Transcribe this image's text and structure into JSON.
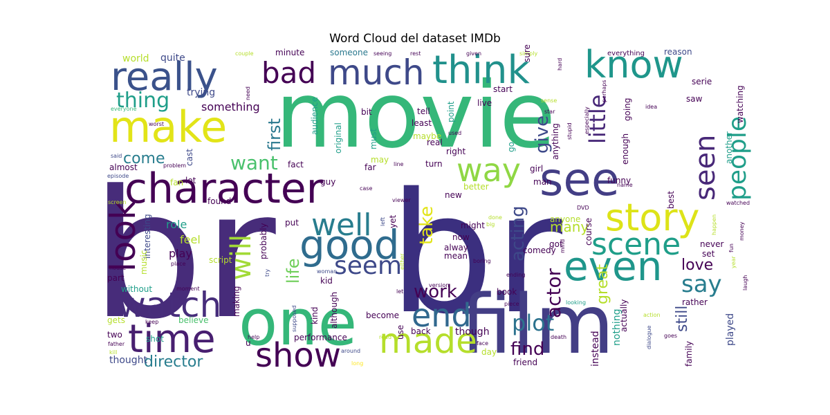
{
  "chart_data": {
    "type": "wordcloud",
    "title": "Word Cloud del dataset IMDb",
    "palette": [
      "#440154",
      "#482878",
      "#3e4989",
      "#31688e",
      "#26828e",
      "#1f9e89",
      "#35b779",
      "#6ece58",
      "#b5de2b",
      "#fde725"
    ],
    "words": [
      {
        "text": "br",
        "weight": 1.0,
        "color": "#472c7a"
      },
      {
        "text": "br",
        "weight": 0.95,
        "color": "#3b2f7f"
      },
      {
        "text": "movie",
        "weight": 0.72,
        "color": "#35b779"
      },
      {
        "text": "film",
        "weight": 0.6,
        "color": "#433e85"
      },
      {
        "text": "one",
        "weight": 0.45,
        "color": "#35b779"
      },
      {
        "text": "make",
        "weight": 0.28,
        "color": "#e2e418"
      },
      {
        "text": "see",
        "weight": 0.3,
        "color": "#433e85"
      },
      {
        "text": "character",
        "weight": 0.25,
        "color": "#440154"
      },
      {
        "text": "time",
        "weight": 0.24,
        "color": "#481f70"
      },
      {
        "text": "watch",
        "weight": 0.23,
        "color": "#472d7b"
      },
      {
        "text": "good",
        "weight": 0.25,
        "color": "#2f6c8e"
      },
      {
        "text": "even",
        "weight": 0.24,
        "color": "#1f968b"
      },
      {
        "text": "really",
        "weight": 0.2,
        "color": "#3b528b"
      },
      {
        "text": "think",
        "weight": 0.2,
        "color": "#21918c"
      },
      {
        "text": "know",
        "weight": 0.2,
        "color": "#1f968b"
      },
      {
        "text": "story",
        "weight": 0.2,
        "color": "#dde318"
      },
      {
        "text": "made",
        "weight": 0.2,
        "color": "#b5de2b"
      },
      {
        "text": "show",
        "weight": 0.17,
        "color": "#440154"
      },
      {
        "text": "end",
        "weight": 0.17,
        "color": "#31688e"
      },
      {
        "text": "scene",
        "weight": 0.17,
        "color": "#1f9e89"
      },
      {
        "text": "people",
        "weight": 0.15,
        "color": "#1f9e89"
      },
      {
        "text": "seen",
        "weight": 0.15,
        "color": "#482878"
      },
      {
        "text": "way",
        "weight": 0.16,
        "color": "#8fd744"
      },
      {
        "text": "much",
        "weight": 0.16,
        "color": "#3e4989"
      },
      {
        "text": "look",
        "weight": 0.15,
        "color": "#440154"
      },
      {
        "text": "well",
        "weight": 0.15,
        "color": "#287d8e"
      },
      {
        "text": "will",
        "weight": 0.14,
        "color": "#a2da37"
      },
      {
        "text": "bad",
        "weight": 0.13,
        "color": "#440154"
      },
      {
        "text": "seem",
        "weight": 0.12,
        "color": "#3e4989"
      },
      {
        "text": "say",
        "weight": 0.11,
        "color": "#287d8e"
      },
      {
        "text": "plot",
        "weight": 0.11,
        "color": "#2c728e"
      },
      {
        "text": "little",
        "weight": 0.1,
        "color": "#482878"
      },
      {
        "text": "thing",
        "weight": 0.1,
        "color": "#1f9e89"
      },
      {
        "text": "want",
        "weight": 0.09,
        "color": "#4ac16d"
      },
      {
        "text": "first",
        "weight": 0.09,
        "color": "#2a788e"
      },
      {
        "text": "give",
        "weight": 0.08,
        "color": "#3e4989"
      },
      {
        "text": "take",
        "weight": 0.09,
        "color": "#e2e418"
      },
      {
        "text": "work",
        "weight": 0.08,
        "color": "#440154"
      },
      {
        "text": "director",
        "weight": 0.07,
        "color": "#287d8e"
      },
      {
        "text": "acting",
        "weight": 0.08,
        "color": "#3e4989"
      },
      {
        "text": "actor",
        "weight": 0.08,
        "color": "#440154"
      },
      {
        "text": "great",
        "weight": 0.07,
        "color": "#b5de2b"
      },
      {
        "text": "find",
        "weight": 0.07,
        "color": "#440154"
      },
      {
        "text": "life",
        "weight": 0.07,
        "color": "#6ece58"
      },
      {
        "text": "come",
        "weight": 0.07,
        "color": "#287d8e"
      },
      {
        "text": "love",
        "weight": 0.07,
        "color": "#440154"
      },
      {
        "text": "still",
        "weight": 0.07,
        "color": "#3e4989"
      },
      {
        "text": "many",
        "weight": 0.06,
        "color": "#b5de2b"
      },
      {
        "text": "something",
        "weight": 0.04,
        "color": "#440154"
      },
      {
        "text": "trying",
        "weight": 0.04,
        "color": "#3e4989"
      },
      {
        "text": "world",
        "weight": 0.04,
        "color": "#b5de2b"
      },
      {
        "text": "quite",
        "weight": 0.04,
        "color": "#3e4989"
      },
      {
        "text": "minute",
        "weight": 0.04,
        "color": "#440154"
      },
      {
        "text": "someone",
        "weight": 0.04,
        "color": "#2a788e"
      },
      {
        "text": "reason",
        "weight": 0.04,
        "color": "#3e4989"
      },
      {
        "text": "everything",
        "weight": 0.03,
        "color": "#440154"
      },
      {
        "text": "everyone",
        "weight": 0.03,
        "color": "#35b779"
      },
      {
        "text": "worst",
        "weight": 0.03,
        "color": "#440154"
      },
      {
        "text": "said",
        "weight": 0.03,
        "color": "#3e4989"
      },
      {
        "text": "episode",
        "weight": 0.03,
        "color": "#3e4989"
      },
      {
        "text": "almost",
        "weight": 0.04,
        "color": "#440154"
      },
      {
        "text": "lot",
        "weight": 0.04,
        "color": "#440154"
      },
      {
        "text": "fact",
        "weight": 0.04,
        "color": "#440154"
      },
      {
        "text": "guy",
        "weight": 0.04,
        "color": "#440154"
      },
      {
        "text": "cast",
        "weight": 0.04,
        "color": "#3e4989"
      },
      {
        "text": "problem",
        "weight": 0.03,
        "color": "#440154"
      },
      {
        "text": "fan",
        "weight": 0.04,
        "color": "#b5de2b"
      },
      {
        "text": "screen",
        "weight": 0.03,
        "color": "#b5de2b"
      },
      {
        "text": "interesting",
        "weight": 0.04,
        "color": "#3e4989"
      },
      {
        "text": "found",
        "weight": 0.04,
        "color": "#440154"
      },
      {
        "text": "role",
        "weight": 0.05,
        "color": "#1f9e89"
      },
      {
        "text": "feel",
        "weight": 0.05,
        "color": "#b5de2b"
      },
      {
        "text": "play",
        "weight": 0.05,
        "color": "#440154"
      },
      {
        "text": "part",
        "weight": 0.04,
        "color": "#440154"
      },
      {
        "text": "without",
        "weight": 0.04,
        "color": "#1f9e89"
      },
      {
        "text": "music",
        "weight": 0.04,
        "color": "#b5de2b"
      },
      {
        "text": "house",
        "weight": 0.03,
        "color": "#440154"
      },
      {
        "text": "place",
        "weight": 0.03,
        "color": "#440154"
      },
      {
        "text": "moment",
        "weight": 0.03,
        "color": "#440154"
      },
      {
        "text": "keep",
        "weight": 0.03,
        "color": "#440154"
      },
      {
        "text": "gets",
        "weight": 0.04,
        "color": "#b5de2b"
      },
      {
        "text": "believe",
        "weight": 0.04,
        "color": "#4ac16d"
      },
      {
        "text": "two",
        "weight": 0.04,
        "color": "#440154"
      },
      {
        "text": "shot",
        "weight": 0.04,
        "color": "#1f9e89"
      },
      {
        "text": "father",
        "weight": 0.03,
        "color": "#440154"
      },
      {
        "text": "kill",
        "weight": 0.03,
        "color": "#b5de2b"
      },
      {
        "text": "thought",
        "weight": 0.04,
        "color": "#3e4989"
      },
      {
        "text": "making",
        "weight": 0.04,
        "color": "#440154"
      },
      {
        "text": "help",
        "weight": 0.03,
        "color": "#440154"
      },
      {
        "text": "u",
        "weight": 0.04,
        "color": "#440154"
      },
      {
        "text": "around",
        "weight": 0.03,
        "color": "#3e4989"
      },
      {
        "text": "long",
        "weight": 0.03,
        "color": "#fde725"
      },
      {
        "text": "script",
        "weight": 0.04,
        "color": "#b5de2b"
      },
      {
        "text": "probably",
        "weight": 0.04,
        "color": "#440154"
      },
      {
        "text": "put",
        "weight": 0.04,
        "color": "#440154"
      },
      {
        "text": "try",
        "weight": 0.03,
        "color": "#3e4989"
      },
      {
        "text": "supposed",
        "weight": 0.03,
        "color": "#3e4989"
      },
      {
        "text": "kind",
        "weight": 0.04,
        "color": "#440154"
      },
      {
        "text": "although",
        "weight": 0.04,
        "color": "#440154"
      },
      {
        "text": "kid",
        "weight": 0.04,
        "color": "#440154"
      },
      {
        "text": "woman",
        "weight": 0.03,
        "color": "#3e4989"
      },
      {
        "text": "become",
        "weight": 0.04,
        "color": "#440154"
      },
      {
        "text": "performance",
        "weight": 0.04,
        "color": "#440154"
      },
      {
        "text": "read",
        "weight": 0.03,
        "color": "#b5de2b"
      },
      {
        "text": "audience",
        "weight": 0.04,
        "color": "#1f9e89"
      },
      {
        "text": "original",
        "weight": 0.04,
        "color": "#1f9e89"
      },
      {
        "text": "bit",
        "weight": 0.04,
        "color": "#440154"
      },
      {
        "text": "must",
        "weight": 0.04,
        "color": "#1f9e89"
      },
      {
        "text": "need",
        "weight": 0.03,
        "color": "#440154"
      },
      {
        "text": "couple",
        "weight": 0.03,
        "color": "#b5de2b"
      },
      {
        "text": "seeing",
        "weight": 0.03,
        "color": "#440154"
      },
      {
        "text": "rest",
        "weight": 0.03,
        "color": "#440154"
      },
      {
        "text": "given",
        "weight": 0.03,
        "color": "#440154"
      },
      {
        "text": "simply",
        "weight": 0.03,
        "color": "#b5de2b"
      },
      {
        "text": "hard",
        "weight": 0.03,
        "color": "#440154"
      },
      {
        "text": "star",
        "weight": 0.03,
        "color": "#440154"
      },
      {
        "text": "sense",
        "weight": 0.03,
        "color": "#b5de2b"
      },
      {
        "text": "sure",
        "weight": 0.03,
        "color": "#440154"
      },
      {
        "text": "start",
        "weight": 0.04,
        "color": "#440154"
      },
      {
        "text": "live",
        "weight": 0.04,
        "color": "#440154"
      },
      {
        "text": "tell",
        "weight": 0.04,
        "color": "#440154"
      },
      {
        "text": "least",
        "weight": 0.04,
        "color": "#440154"
      },
      {
        "text": "maybe",
        "weight": 0.04,
        "color": "#b5de2b"
      },
      {
        "text": "point",
        "weight": 0.04,
        "color": "#1f9e89"
      },
      {
        "text": "real",
        "weight": 0.04,
        "color": "#440154"
      },
      {
        "text": "right",
        "weight": 0.04,
        "color": "#440154"
      },
      {
        "text": "may",
        "weight": 0.04,
        "color": "#b5de2b"
      },
      {
        "text": "line",
        "weight": 0.03,
        "color": "#440154"
      },
      {
        "text": "turn",
        "weight": 0.04,
        "color": "#440154"
      },
      {
        "text": "far",
        "weight": 0.04,
        "color": "#440154"
      },
      {
        "text": "case",
        "weight": 0.03,
        "color": "#440154"
      },
      {
        "text": "viewer",
        "weight": 0.03,
        "color": "#440154"
      },
      {
        "text": "left",
        "weight": 0.03,
        "color": "#3e4989"
      },
      {
        "text": "yet",
        "weight": 0.04,
        "color": "#440154"
      },
      {
        "text": "let",
        "weight": 0.03,
        "color": "#440154"
      },
      {
        "text": "either",
        "weight": 0.03,
        "color": "#b5de2b"
      },
      {
        "text": "use",
        "weight": 0.04,
        "color": "#440154"
      },
      {
        "text": "back",
        "weight": 0.04,
        "color": "#440154"
      },
      {
        "text": "version",
        "weight": 0.03,
        "color": "#440154"
      },
      {
        "text": "might",
        "weight": 0.04,
        "color": "#440154"
      },
      {
        "text": "now",
        "weight": 0.04,
        "color": "#440154"
      },
      {
        "text": "alway",
        "weight": 0.04,
        "color": "#440154"
      },
      {
        "text": "mean",
        "weight": 0.04,
        "color": "#440154"
      },
      {
        "text": "new",
        "weight": 0.04,
        "color": "#440154"
      },
      {
        "text": "better",
        "weight": 0.04,
        "color": "#b5de2b"
      },
      {
        "text": "done",
        "weight": 0.03,
        "color": "#b5de2b"
      },
      {
        "text": "big",
        "weight": 0.03,
        "color": "#b5de2b"
      },
      {
        "text": "boring",
        "weight": 0.03,
        "color": "#440154"
      },
      {
        "text": "ending",
        "weight": 0.03,
        "color": "#440154"
      },
      {
        "text": "book",
        "weight": 0.04,
        "color": "#440154"
      },
      {
        "text": "piece",
        "weight": 0.03,
        "color": "#440154"
      },
      {
        "text": "face",
        "weight": 0.03,
        "color": "#440154"
      },
      {
        "text": "though",
        "weight": 0.05,
        "color": "#440154"
      },
      {
        "text": "day",
        "weight": 0.04,
        "color": "#b5de2b"
      },
      {
        "text": "friend",
        "weight": 0.04,
        "color": "#440154"
      },
      {
        "text": "instead",
        "weight": 0.04,
        "color": "#440154"
      },
      {
        "text": "nothing",
        "weight": 0.04,
        "color": "#1f9e89"
      },
      {
        "text": "actually",
        "weight": 0.04,
        "color": "#440154"
      },
      {
        "text": "death",
        "weight": 0.03,
        "color": "#440154"
      },
      {
        "text": "dialogue",
        "weight": 0.03,
        "color": "#3e4989"
      },
      {
        "text": "action",
        "weight": 0.03,
        "color": "#b5de2b"
      },
      {
        "text": "goes",
        "weight": 0.03,
        "color": "#440154"
      },
      {
        "text": "looking",
        "weight": 0.03,
        "color": "#1f9e89"
      },
      {
        "text": "rather",
        "weight": 0.04,
        "color": "#440154"
      },
      {
        "text": "family",
        "weight": 0.04,
        "color": "#440154"
      },
      {
        "text": "played",
        "weight": 0.04,
        "color": "#3e4989"
      },
      {
        "text": "laugh",
        "weight": 0.03,
        "color": "#440154"
      },
      {
        "text": "watched",
        "weight": 0.03,
        "color": "#440154"
      },
      {
        "text": "fun",
        "weight": 0.03,
        "color": "#440154"
      },
      {
        "text": "money",
        "weight": 0.03,
        "color": "#440154"
      },
      {
        "text": "happen",
        "weight": 0.03,
        "color": "#b5de2b"
      },
      {
        "text": "year",
        "weight": 0.03,
        "color": "#b5de2b"
      },
      {
        "text": "never",
        "weight": 0.04,
        "color": "#440154"
      },
      {
        "text": "set",
        "weight": 0.04,
        "color": "#440154"
      },
      {
        "text": "got",
        "weight": 0.04,
        "color": "#440154"
      },
      {
        "text": "anyone",
        "weight": 0.04,
        "color": "#b5de2b"
      },
      {
        "text": "mind",
        "weight": 0.03,
        "color": "#440154"
      },
      {
        "text": "DVD",
        "weight": 0.03,
        "color": "#440154"
      },
      {
        "text": "name",
        "weight": 0.03,
        "color": "#440154"
      },
      {
        "text": "comedy",
        "weight": 0.04,
        "color": "#440154"
      },
      {
        "text": "course",
        "weight": 0.04,
        "color": "#440154"
      },
      {
        "text": "best",
        "weight": 0.04,
        "color": "#440154"
      },
      {
        "text": "girl",
        "weight": 0.04,
        "color": "#440154"
      },
      {
        "text": "man",
        "weight": 0.04,
        "color": "#440154"
      },
      {
        "text": "go",
        "weight": 0.04,
        "color": "#1f9e89"
      },
      {
        "text": "funny",
        "weight": 0.04,
        "color": "#440154"
      },
      {
        "text": "enough",
        "weight": 0.04,
        "color": "#440154"
      },
      {
        "text": "another",
        "weight": 0.04,
        "color": "#1f9e89"
      },
      {
        "text": "anything",
        "weight": 0.04,
        "color": "#440154"
      },
      {
        "text": "going",
        "weight": 0.04,
        "color": "#440154"
      },
      {
        "text": "used",
        "weight": 0.03,
        "color": "#440154"
      },
      {
        "text": "stupid",
        "weight": 0.03,
        "color": "#440154"
      },
      {
        "text": "especially",
        "weight": 0.03,
        "color": "#440154"
      },
      {
        "text": "perhaps",
        "weight": 0.03,
        "color": "#440154"
      },
      {
        "text": "idea",
        "weight": 0.03,
        "color": "#440154"
      },
      {
        "text": "saw",
        "weight": 0.04,
        "color": "#440154"
      },
      {
        "text": "serie",
        "weight": 0.04,
        "color": "#440154"
      },
      {
        "text": "watching",
        "weight": 0.04,
        "color": "#440154"
      }
    ]
  }
}
